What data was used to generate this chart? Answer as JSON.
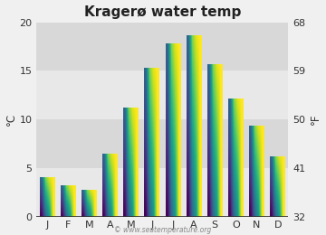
{
  "title": "Kragerø water temp",
  "months": [
    "J",
    "F",
    "M",
    "A",
    "M",
    "J",
    "J",
    "A",
    "S",
    "O",
    "N",
    "D"
  ],
  "values_c": [
    4.0,
    3.2,
    2.7,
    6.5,
    11.2,
    15.3,
    17.8,
    18.6,
    15.7,
    12.1,
    9.3,
    6.2
  ],
  "ylim_c": [
    0,
    20
  ],
  "yticks_c": [
    0,
    5,
    10,
    15,
    20
  ],
  "yticks_f": [
    32,
    41,
    50,
    59,
    68
  ],
  "ylabel_left": "°C",
  "ylabel_right": "°F",
  "bar_color_top": "#5dcff5",
  "bar_color_bottom": "#0e5c8e",
  "bg_color": "#f0f0f0",
  "plot_bg_color_light": "#e8e8e8",
  "plot_bg_color_dark": "#d8d8d8",
  "watermark": "© www.seatemperature.org",
  "title_fontsize": 11,
  "tick_fontsize": 8,
  "label_fontsize": 8.5
}
